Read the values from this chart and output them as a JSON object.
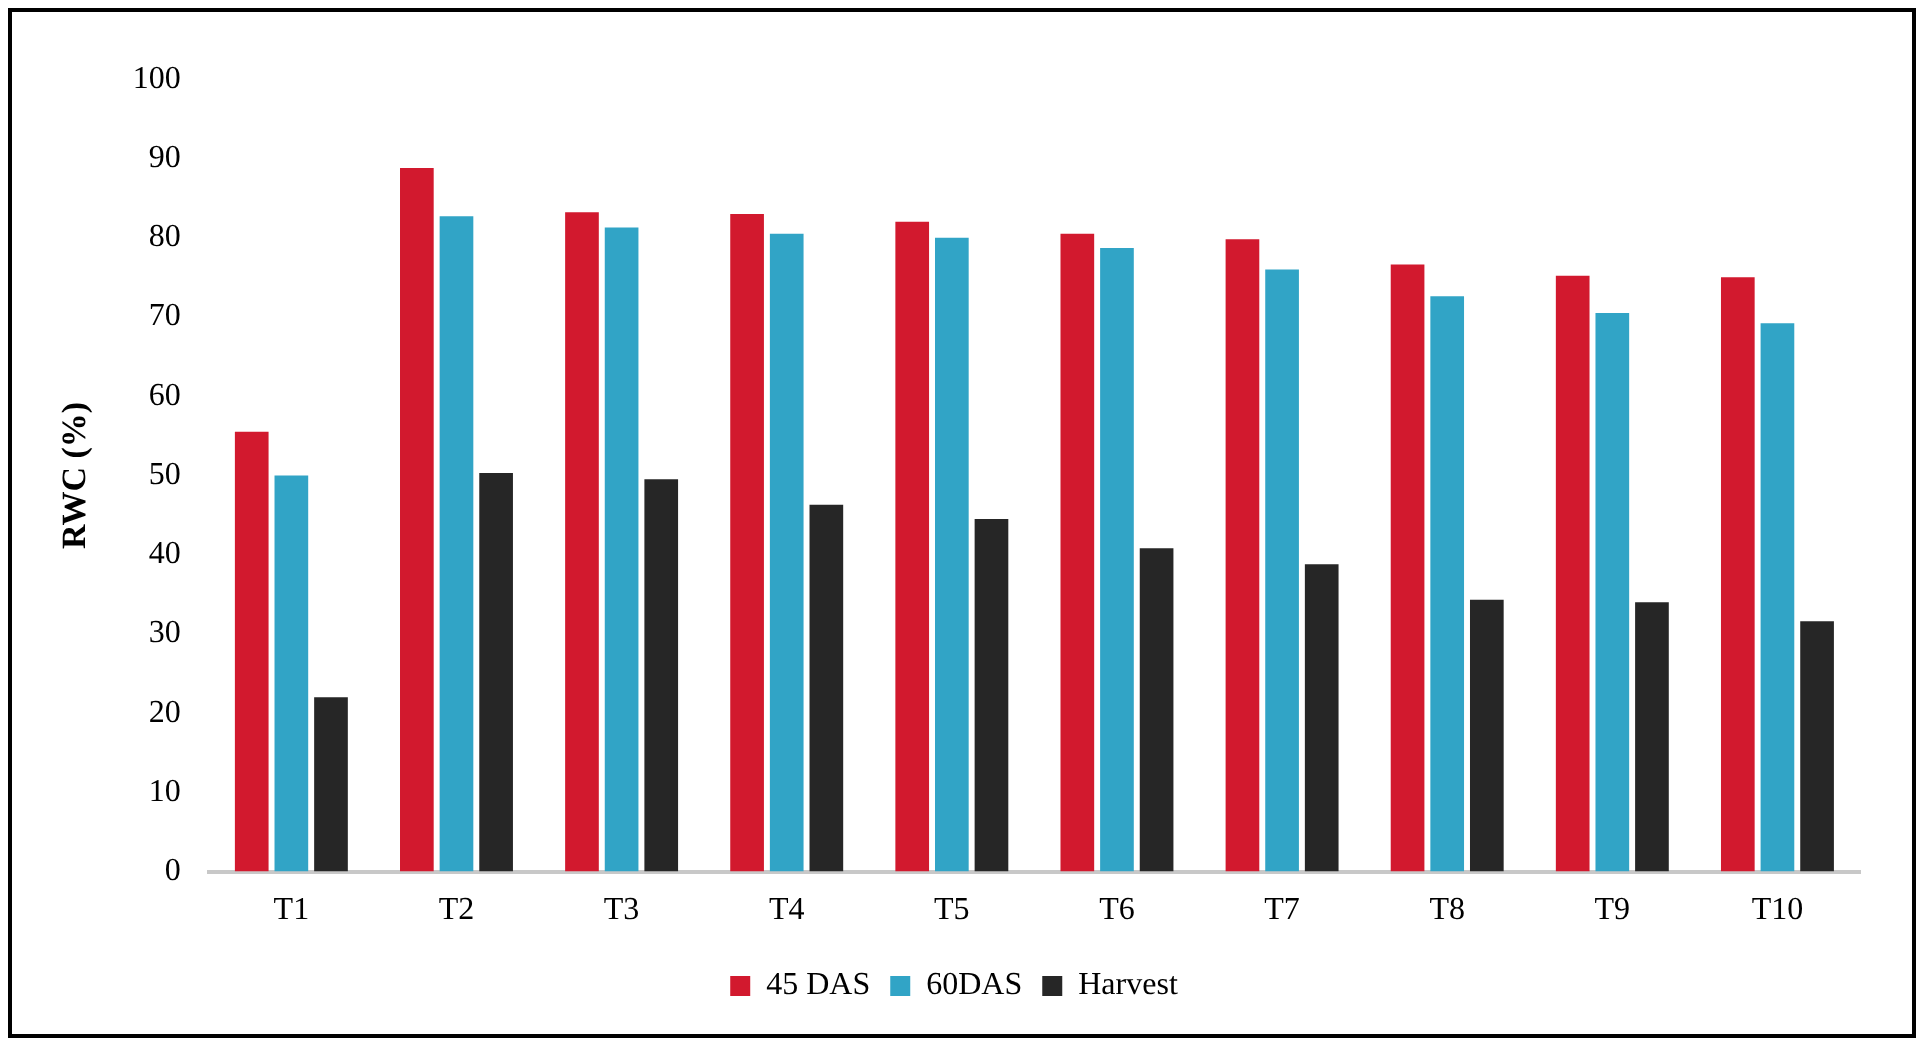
{
  "chart_data": {
    "type": "bar",
    "ylabel": "RWC (%)",
    "categories": [
      "T1",
      "T2",
      "T3",
      "T4",
      "T5",
      "T6",
      "T7",
      "T8",
      "T9",
      "T10"
    ],
    "series": [
      {
        "name": "45 DAS",
        "color": "#d2192e",
        "values": [
          55.5,
          88.8,
          83.2,
          83,
          82,
          80.5,
          79.8,
          76.6,
          75.2,
          75
        ]
      },
      {
        "name": "60DAS",
        "color": "#31a4c6",
        "values": [
          50,
          82.7,
          81.3,
          80.5,
          80,
          78.7,
          76,
          72.6,
          70.5,
          69.2
        ]
      },
      {
        "name": "Harvest",
        "color": "#262626",
        "values": [
          22,
          50.3,
          49.5,
          46.3,
          44.5,
          40.8,
          38.8,
          34.3,
          34,
          31.6
        ]
      }
    ],
    "ylim": [
      0,
      100
    ],
    "yticks": [
      0,
      10,
      20,
      30,
      40,
      50,
      60,
      70,
      80,
      90,
      100
    ],
    "grid": false,
    "legend": "bottom"
  }
}
